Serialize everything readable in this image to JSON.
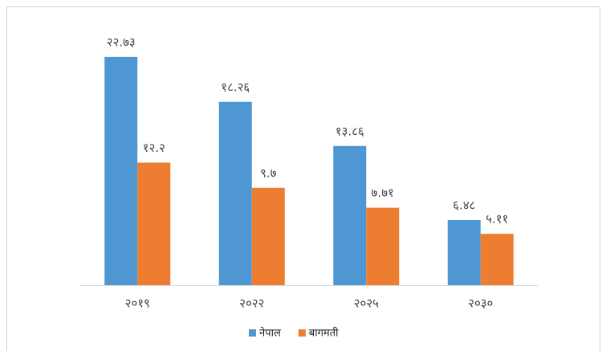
{
  "chart_data": {
    "type": "bar",
    "categories": [
      "२०१९",
      "२०२२",
      "२०२५",
      "२०३०"
    ],
    "series": [
      {
        "name": "नेपाल",
        "color": "#4f97d3",
        "values": [
          22.73,
          18.26,
          13.86,
          6.48
        ],
        "value_labels": [
          "२२.७३",
          "१८.२६",
          "१३.८६",
          "६.४८"
        ]
      },
      {
        "name": "बागमती",
        "color": "#ed7d31",
        "values": [
          12.2,
          9.7,
          7.71,
          5.11
        ],
        "value_labels": [
          "१२.२",
          "९.७",
          "७.७१",
          "५.११"
        ]
      }
    ],
    "legend": "bottom"
  }
}
